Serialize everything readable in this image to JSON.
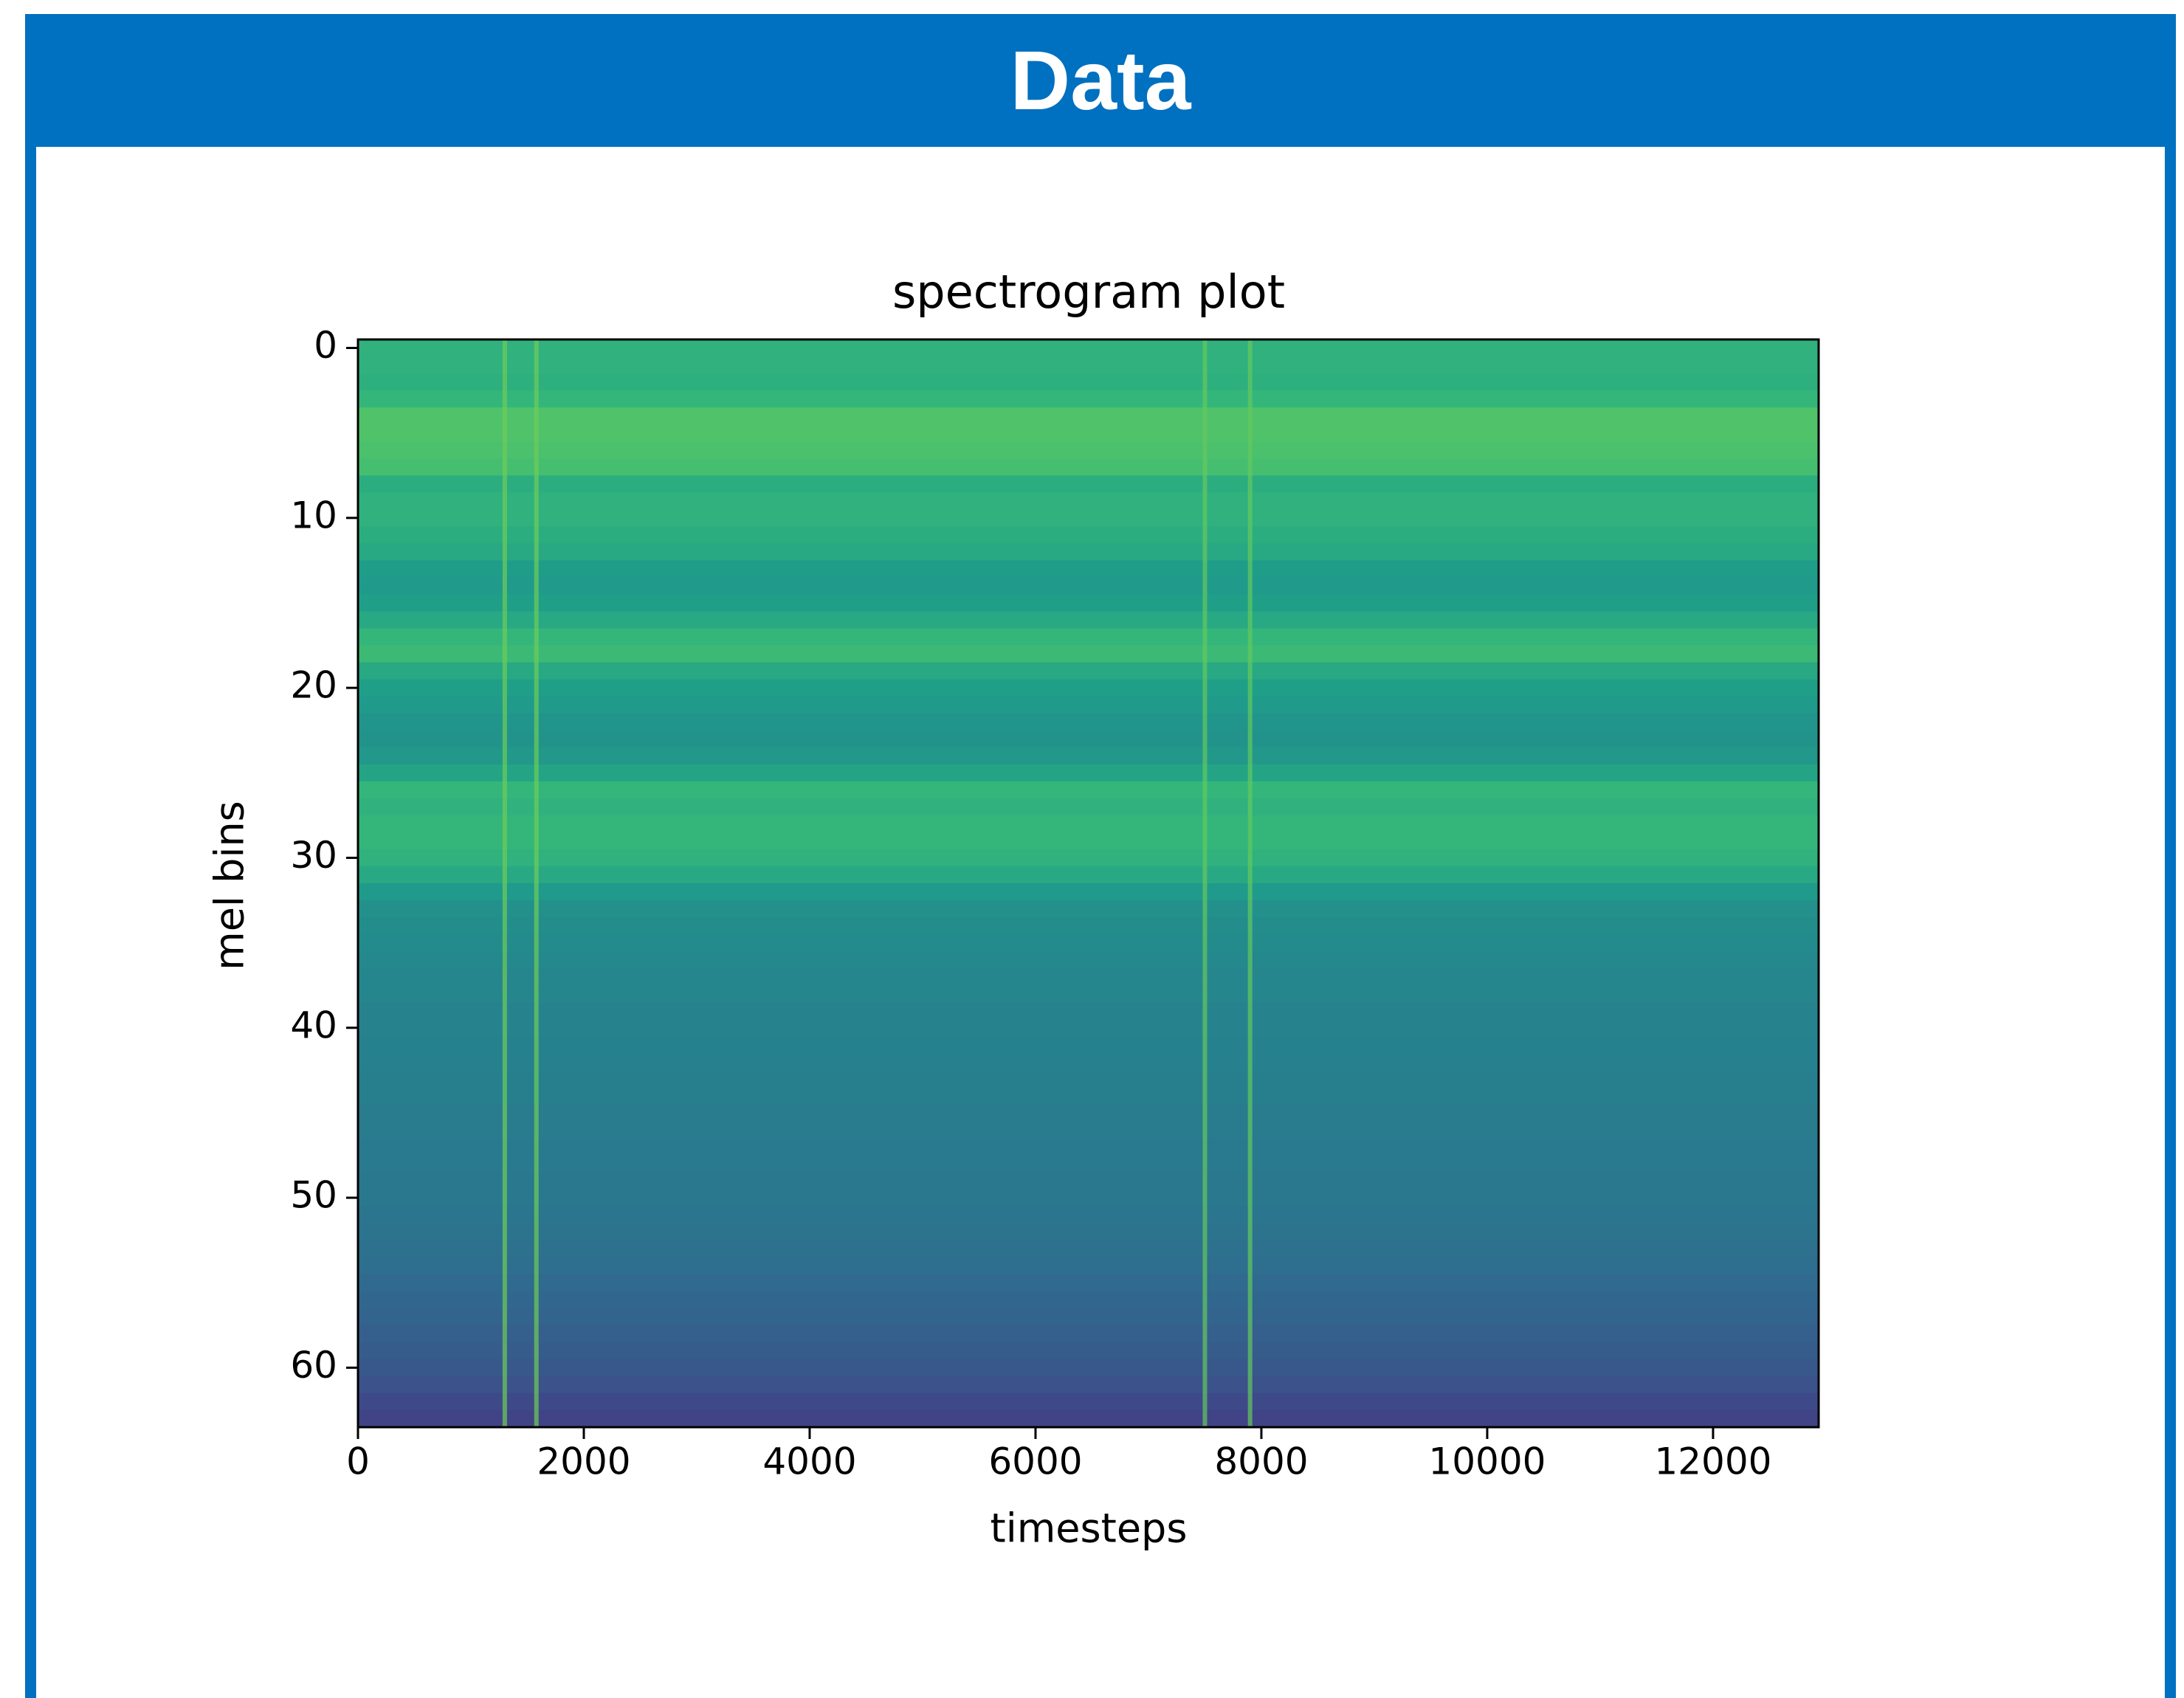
{
  "header": {
    "title": "Data"
  },
  "chart_data": {
    "type": "heatmap",
    "title": "spectrogram plot",
    "x_label": "timesteps",
    "y_label": "mel bins",
    "colormap": "viridis",
    "y_inverted": true,
    "xlim": [
      0,
      12935
    ],
    "xticks": [
      0,
      2000,
      4000,
      6000,
      8000,
      10000,
      12000
    ],
    "ylim": [
      -0.5,
      63.5
    ],
    "yticks": [
      0,
      10,
      20,
      30,
      40,
      50,
      60
    ],
    "values": [
      0.64,
      0.64,
      0.63,
      0.66,
      0.72,
      0.72,
      0.71,
      0.7,
      0.62,
      0.64,
      0.64,
      0.62,
      0.6,
      0.55,
      0.54,
      0.56,
      0.6,
      0.66,
      0.68,
      0.6,
      0.56,
      0.54,
      0.52,
      0.51,
      0.53,
      0.58,
      0.66,
      0.64,
      0.66,
      0.66,
      0.64,
      0.6,
      0.54,
      0.5,
      0.49,
      0.48,
      0.47,
      0.46,
      0.46,
      0.45,
      0.45,
      0.44,
      0.44,
      0.43,
      0.43,
      0.42,
      0.42,
      0.41,
      0.41,
      0.4,
      0.4,
      0.39,
      0.38,
      0.37,
      0.36,
      0.34,
      0.33,
      0.32,
      0.3,
      0.29,
      0.27,
      0.25,
      0.22,
      0.2
    ],
    "streaks": {
      "x": [
        1300,
        1580,
        7500,
        7900
      ],
      "values": [
        0.78,
        0.78,
        0.76,
        0.76
      ]
    }
  }
}
